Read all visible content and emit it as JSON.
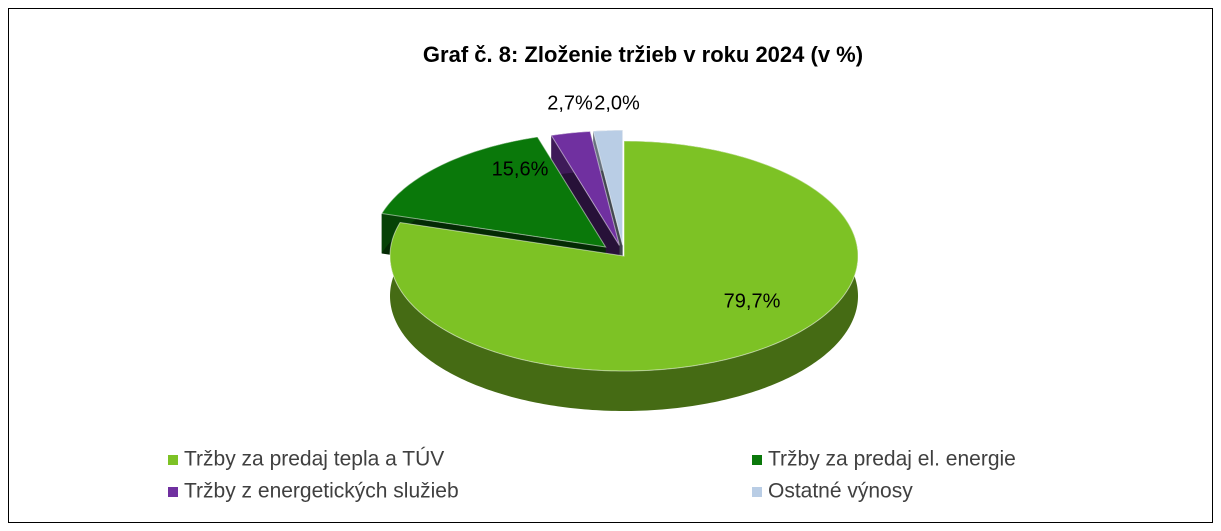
{
  "chart_data": {
    "type": "pie3d",
    "title": "Graf č. 8: Zloženie tržieb v roku 2024 (v %)",
    "categories": [
      "Tržby za predaj tepla a TÚV",
      "Tržby za predaj el. energie",
      "Tržby z energetických služieb",
      "Ostatné výnosy"
    ],
    "values": [
      79.7,
      15.6,
      2.7,
      2.0
    ],
    "value_labels": [
      "79,7%",
      "15,6%",
      "2,7%",
      "2,0%"
    ],
    "colors": [
      "#7dc225",
      "#0a780a",
      "#7030a0",
      "#b9cde5"
    ],
    "legend": "bottom"
  }
}
